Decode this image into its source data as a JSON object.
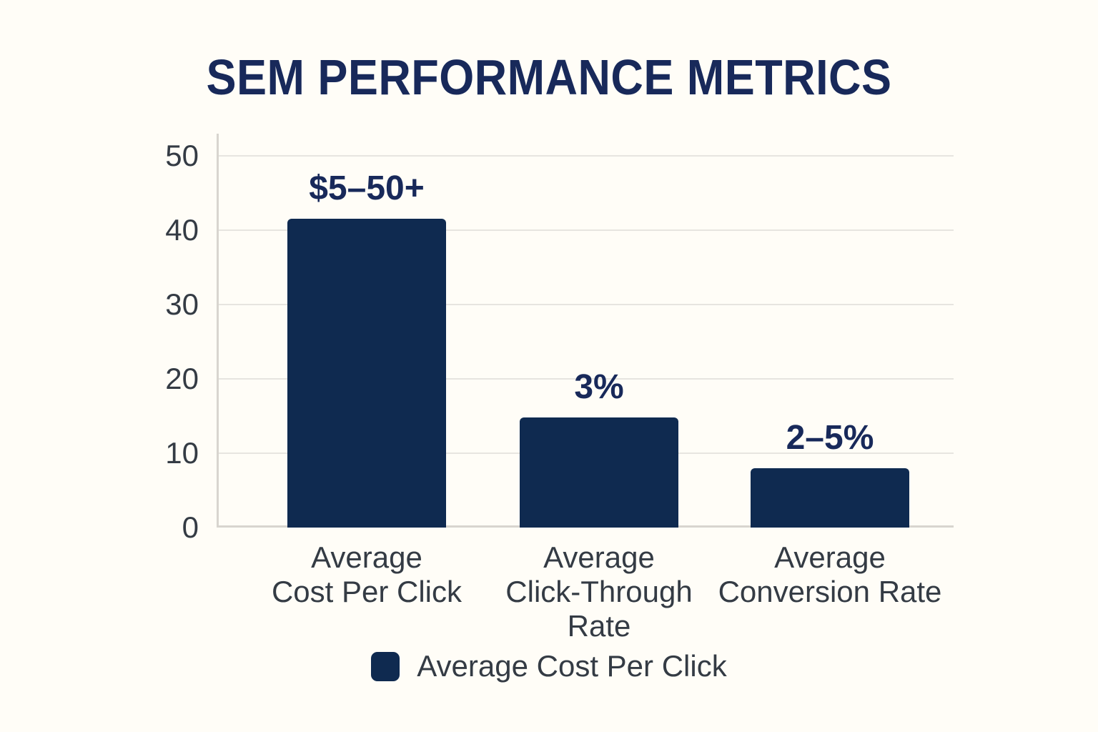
{
  "title": "SEM PERFORMANCE METRICS",
  "colors": {
    "background": "#FFFDF7",
    "bar": "#0F2A50",
    "title_text": "#18295A",
    "value_label": "#18295A",
    "axis_text": "#343B44",
    "grid_line": "#E7E5E0",
    "axis_line": "#D8D5CF"
  },
  "legend": {
    "label": "Average Cost Per Click"
  },
  "chart_data": {
    "type": "bar",
    "title": "SEM PERFORMANCE METRICS",
    "categories": [
      "Average\nCost Per Click",
      "Average\nClick-Through\nRate",
      "Average\nConversion Rate"
    ],
    "series": [
      {
        "name": "Average Cost Per Click",
        "values": [
          41.5,
          14.8,
          8
        ]
      }
    ],
    "bar_value_labels": [
      "$5–50+",
      "3%",
      "2–5%"
    ],
    "xlabel": "",
    "ylabel": "",
    "ylim": [
      0,
      50
    ],
    "yticks": [
      0,
      10,
      20,
      30,
      40,
      50
    ],
    "grid": "horizontal",
    "legend_position": "bottom"
  }
}
